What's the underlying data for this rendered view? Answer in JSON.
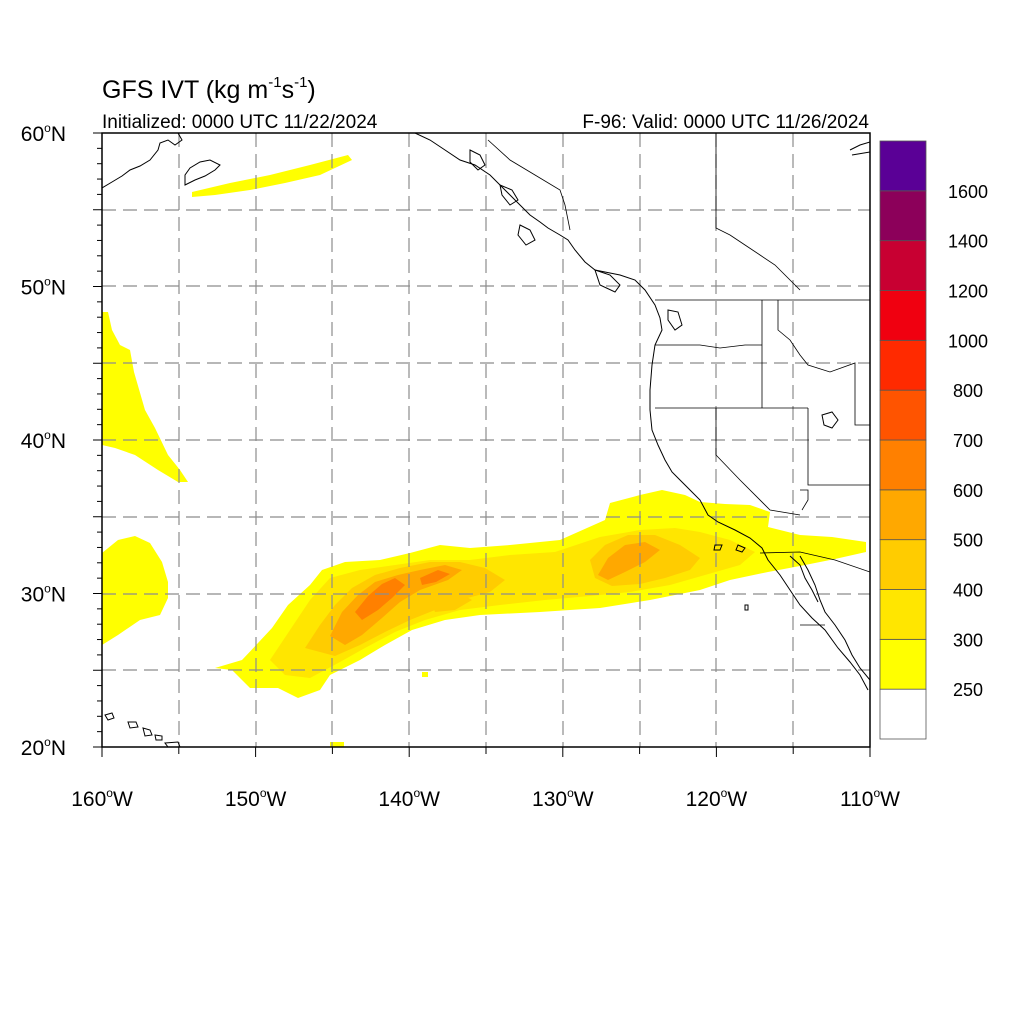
{
  "title": {
    "main": "GFS IVT (kg m",
    "sup1": "-1",
    "mid": "s",
    "sup2": "-1",
    "end": ")"
  },
  "subtitle_left": "Initialized: 0000 UTC 11/22/2024",
  "subtitle_right": "F-96: Valid: 0000 UTC 11/26/2024",
  "lat_labels": [
    {
      "deg": "60",
      "hem": "N",
      "value": 60
    },
    {
      "deg": "50",
      "hem": "N",
      "value": 50
    },
    {
      "deg": "40",
      "hem": "N",
      "value": 40
    },
    {
      "deg": "30",
      "hem": "N",
      "value": 30
    },
    {
      "deg": "20",
      "hem": "N",
      "value": 20
    }
  ],
  "lon_labels": [
    {
      "deg": "160",
      "hem": "W",
      "value": -160
    },
    {
      "deg": "150",
      "hem": "W",
      "value": -150
    },
    {
      "deg": "140",
      "hem": "W",
      "value": -140
    },
    {
      "deg": "130",
      "hem": "W",
      "value": -130
    },
    {
      "deg": "120",
      "hem": "W",
      "value": -120
    },
    {
      "deg": "110",
      "hem": "W",
      "value": -110
    }
  ],
  "extent": {
    "lon_min": -160,
    "lon_max": -110,
    "lat_min": 20,
    "lat_max": 60
  },
  "colorbar": {
    "colors": [
      "#ffffff",
      "#ffff00",
      "#ffe600",
      "#ffcc00",
      "#ffa800",
      "#ff8000",
      "#ff5400",
      "#ff2a00",
      "#f00010",
      "#c80032",
      "#8c005a",
      "#5a0096"
    ],
    "labels": [
      "250",
      "300",
      "400",
      "500",
      "600",
      "700",
      "800",
      "1000",
      "1200",
      "1400",
      "1600"
    ]
  },
  "ivt_levels": {
    "lvl250": "#ffff00",
    "lvl300": "#ffe600",
    "lvl400": "#ffcc00",
    "lvl500": "#ffa800",
    "lvl600": "#ff8000"
  }
}
